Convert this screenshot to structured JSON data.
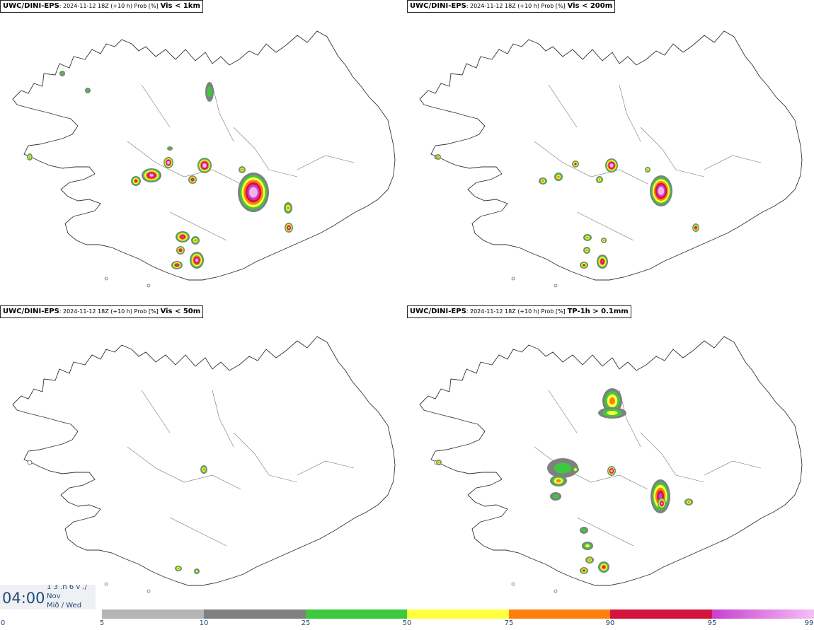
{
  "panels": [
    {
      "source": "UWC/DINI-EPS",
      "meta": ": 2024-11-12 18Z (+10 h) Prob [%]",
      "variable": "Vis < 1km"
    },
    {
      "source": "UWC/DINI-EPS",
      "meta": ": 2024-11-12 18Z (+10 h) Prob [%]",
      "variable": "Vis < 200m"
    },
    {
      "source": "UWC/DINI-EPS",
      "meta": ": 2024-11-12 18Z (+10 h) Prob [%]",
      "variable": "Vis < 50m"
    },
    {
      "source": "UWC/DINI-EPS",
      "meta": ": 2024-11-12 18Z (+10 h) Prob [%]",
      "variable": "TP-1h > 0.1mm"
    }
  ],
  "valid_time": {
    "time": "04:00",
    "line1": "1 3 .n 6 v ./",
    "line2": "Nov",
    "line3": "Mið / Wed"
  },
  "legend": {
    "ticks": [
      "0",
      "5",
      "10",
      "25",
      "50",
      "75",
      "90",
      "95",
      "99"
    ],
    "colors": [
      "#ffffff",
      "#b5b5b5",
      "#808080",
      "#3dc93d",
      "#ffff3d",
      "#ff7f0e",
      "#d4143c",
      "#c83fcf",
      "#f5c0f5"
    ]
  }
}
